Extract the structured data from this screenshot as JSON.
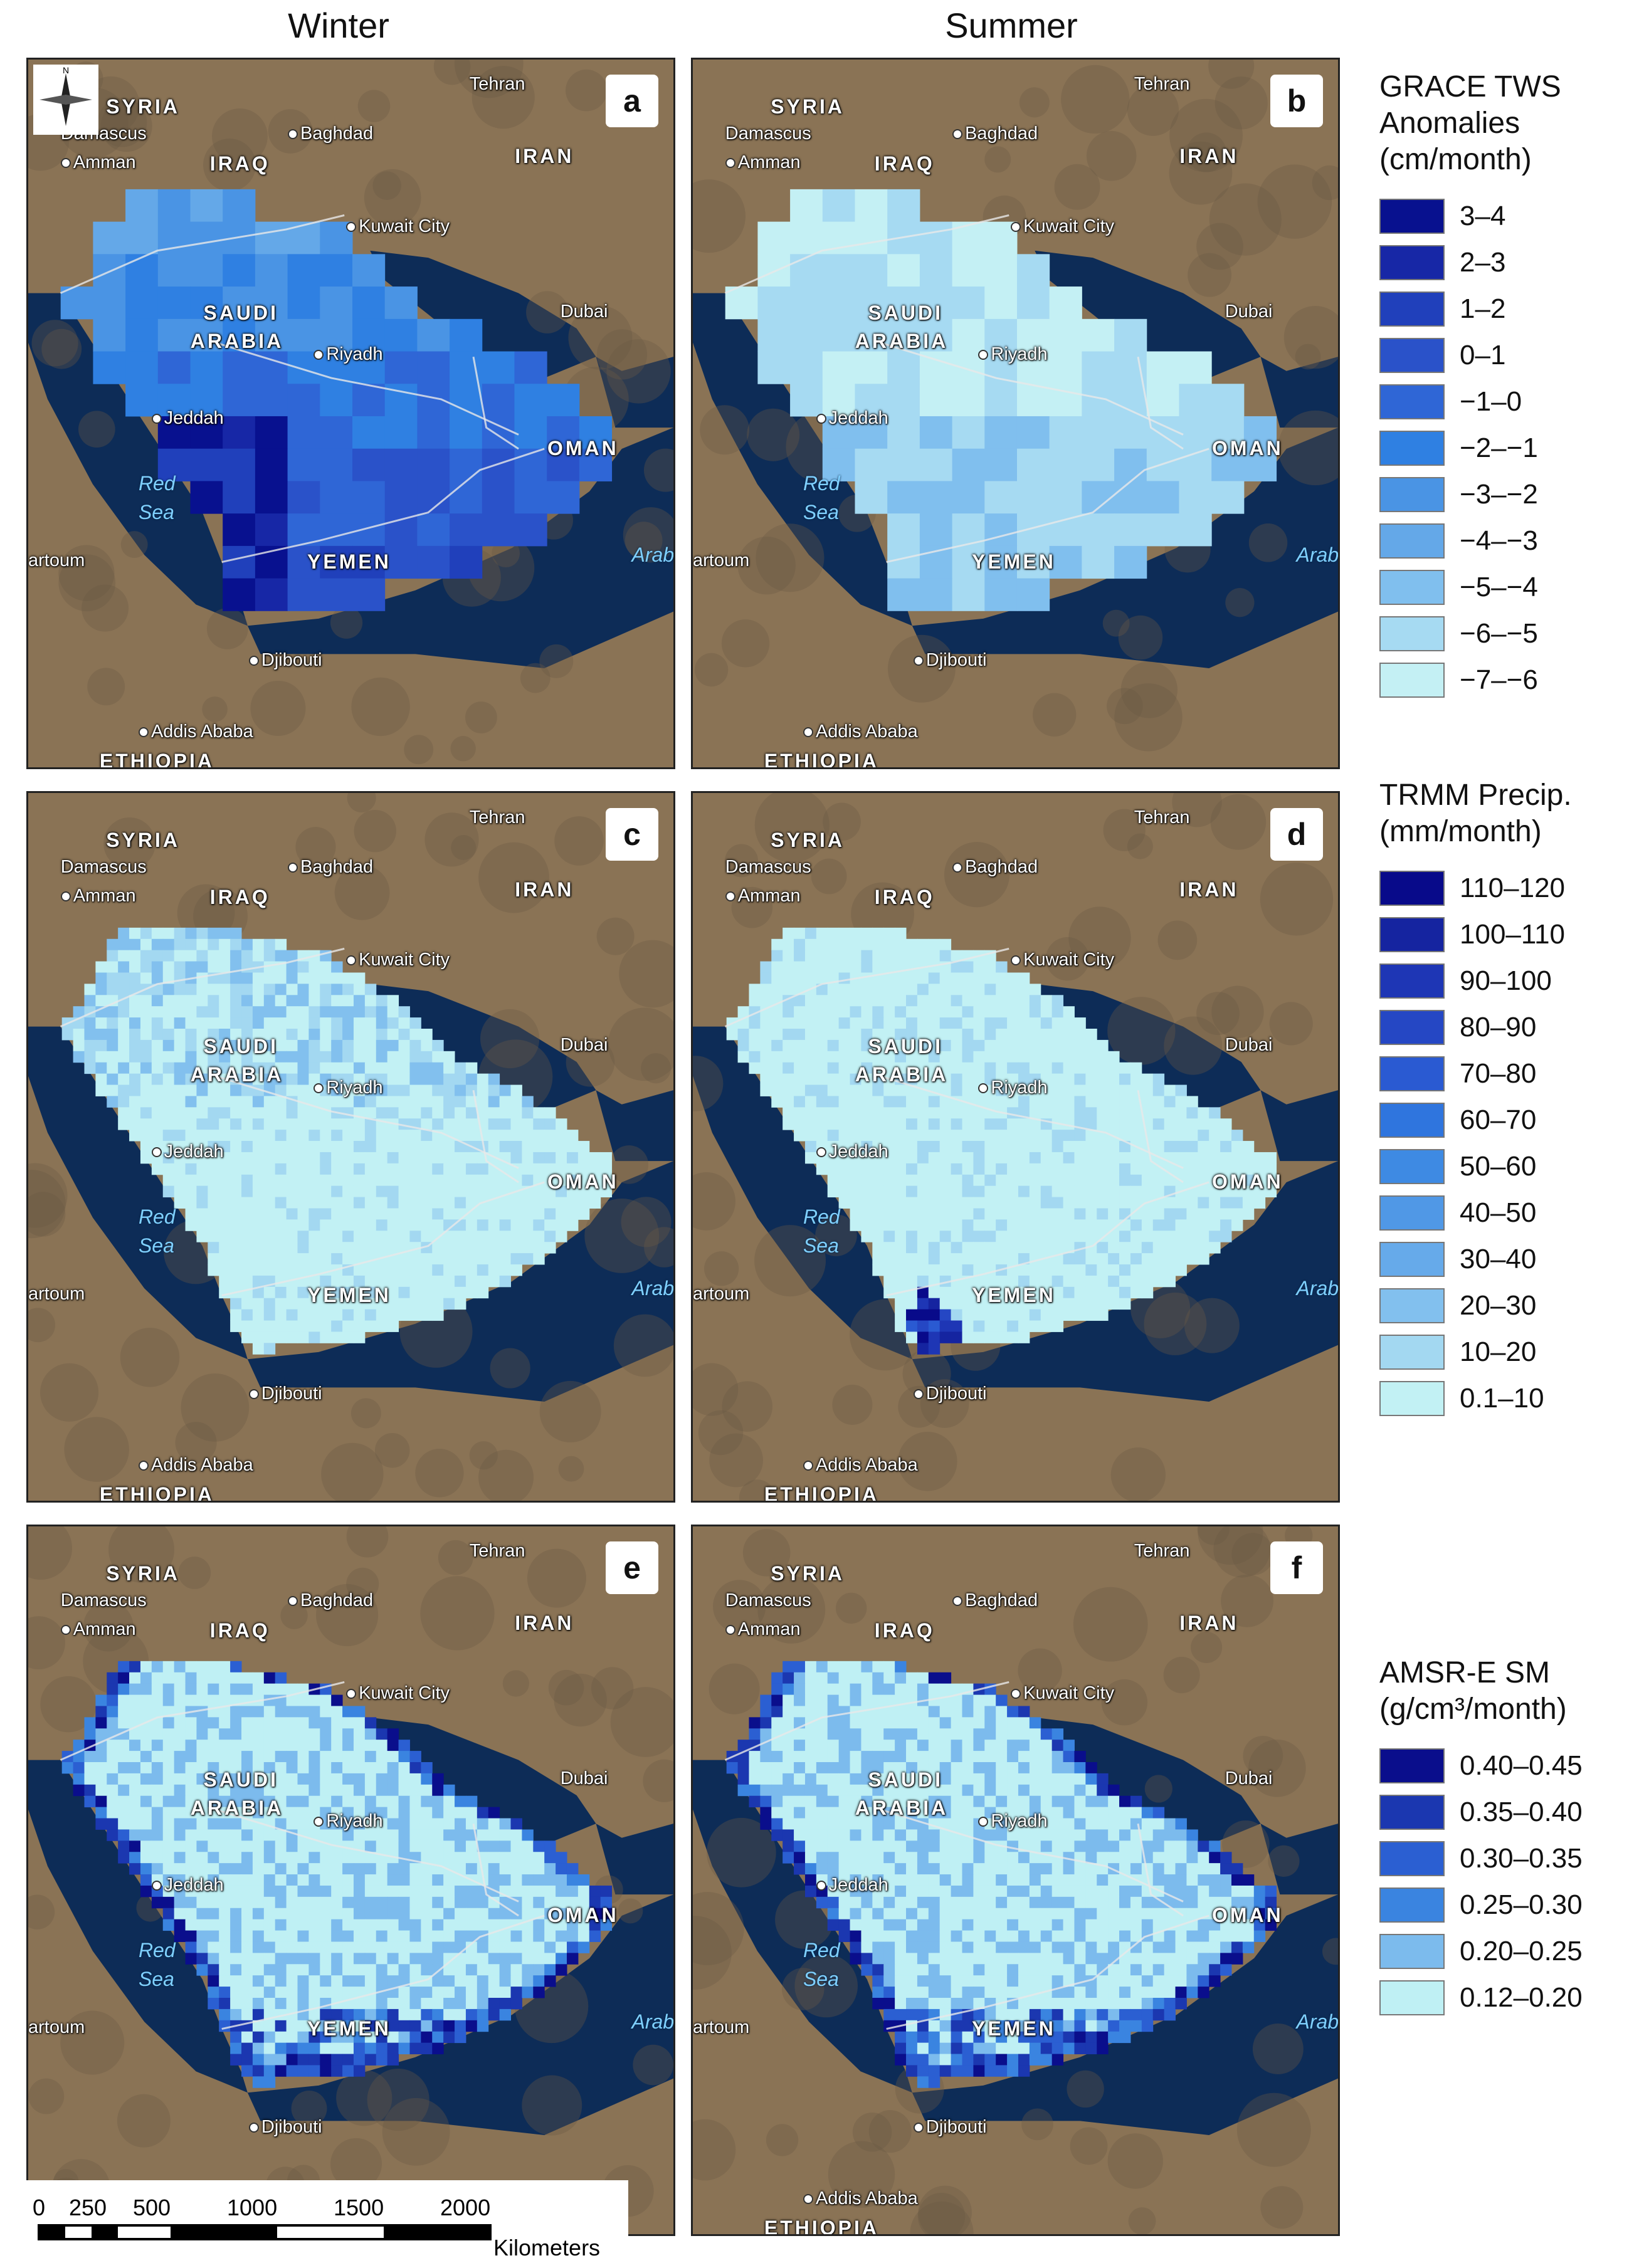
{
  "columns": [
    "Winter",
    "Summer"
  ],
  "panels": [
    {
      "letter": "a",
      "variable": "grace",
      "season": "Winter"
    },
    {
      "letter": "b",
      "variable": "grace",
      "season": "Summer"
    },
    {
      "letter": "c",
      "variable": "trmm",
      "season": "Winter"
    },
    {
      "letter": "d",
      "variable": "trmm",
      "season": "Summer"
    },
    {
      "letter": "e",
      "variable": "amsr",
      "season": "Winter"
    },
    {
      "letter": "f",
      "variable": "amsr",
      "season": "Summer"
    }
  ],
  "map_labels": {
    "countries": [
      "SYRIA",
      "IRAQ",
      "IRAN",
      "SAUDI",
      "ARABIA",
      "OMAN",
      "YEMEN",
      "ETHIOPIA"
    ],
    "cities": [
      "Tehran",
      "Damascus",
      "Amman",
      "Baghdad",
      "Kuwait City",
      "Dubai",
      "Riyadh",
      "Jeddah",
      "Djibouti",
      "Addis Ababa"
    ],
    "water": [
      "Red",
      "Sea",
      "Arabia"
    ],
    "edge_text": [
      "artoum"
    ]
  },
  "legends": {
    "grace": {
      "title_lines": [
        "GRACE TWS",
        "Anomalies",
        "(cm/month)"
      ],
      "classes": [
        "3–4",
        "2–3",
        "1–2",
        "0–1",
        "−1–0",
        "−2–−1",
        "−3–−2",
        "−4–−3",
        "−5–−4",
        "−6–−5",
        "−7–−6"
      ],
      "colors": [
        "#08118f",
        "#1727a6",
        "#2040bb",
        "#2a52c9",
        "#2f66d6",
        "#2f80e2",
        "#4a94e4",
        "#64a8e8",
        "#80bfee",
        "#a6daf2",
        "#c4f0f4"
      ]
    },
    "trmm": {
      "title_lines": [
        "TRMM Precip.",
        "(mm/month)"
      ],
      "classes": [
        "110–120",
        "100–110",
        "90–100",
        "80–90",
        "70–80",
        "60–70",
        "50–60",
        "40–50",
        "30–40",
        "20–30",
        "10–20",
        "0.1–10"
      ],
      "colors": [
        "#080a8a",
        "#1524a0",
        "#1e36b5",
        "#2547c4",
        "#2a5ad2",
        "#2f75de",
        "#3e8ae3",
        "#5098e6",
        "#66aaea",
        "#82c0ee",
        "#a3d8f1",
        "#c2f1f4"
      ]
    },
    "amsr": {
      "title_lines": [
        "AMSR-E SM",
        "(g/cm³/month)"
      ],
      "classes": [
        "0.40–0.45",
        "0.35–0.40",
        "0.30–0.35",
        "0.25–0.30",
        "0.20–0.25",
        "0.12–0.20"
      ],
      "colors": [
        "#0a0e8c",
        "#1b37b0",
        "#2b5fd2",
        "#3a84e0",
        "#7cbbed",
        "#bff0f4"
      ]
    }
  },
  "scale_bar": {
    "ticks": [
      "0",
      "250",
      "500",
      "1000",
      "1500",
      "2000"
    ],
    "unit": "Kilometers"
  },
  "compass": {
    "north": "N"
  },
  "colors": {
    "land": "#8a7355",
    "land_dark": "#6b5a44",
    "sea": "#0d2c57",
    "sea_shallow": "#1a3f6e",
    "border": "#e8e8e8"
  }
}
